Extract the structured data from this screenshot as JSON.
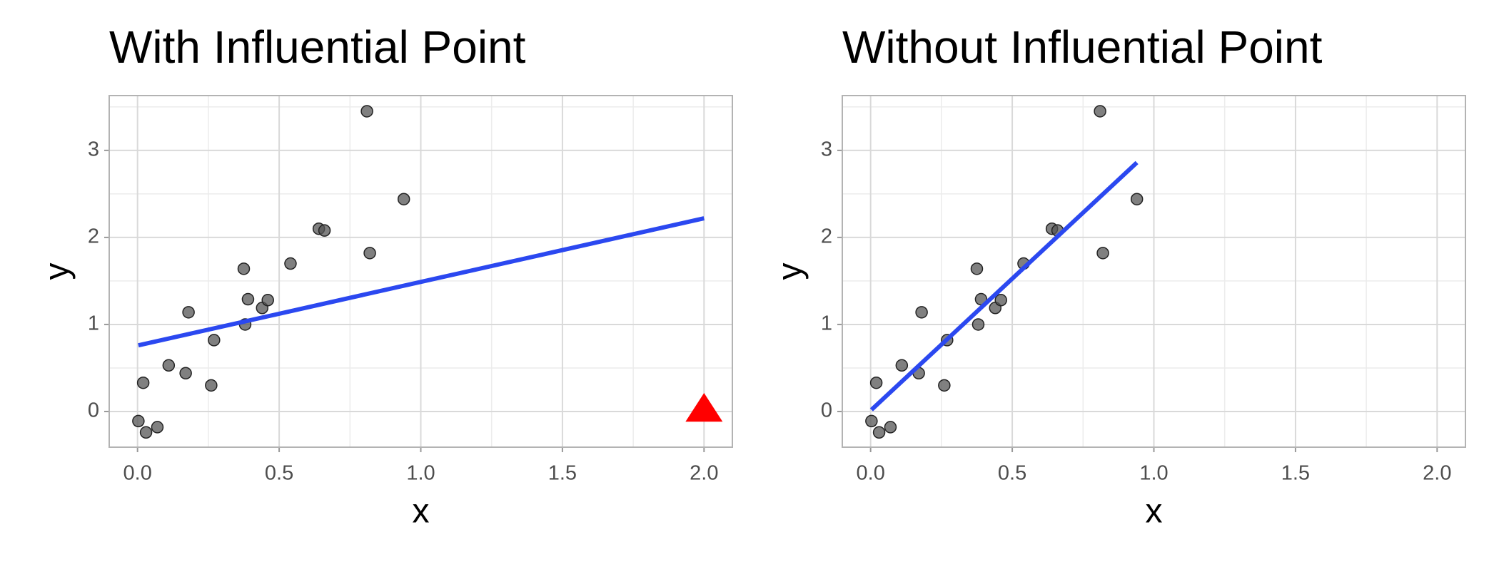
{
  "chart_data": [
    {
      "type": "scatter",
      "title": "With Influential Point",
      "x_label": "x",
      "y_label": "y",
      "xlim": [
        -0.1,
        2.1
      ],
      "ylim": [
        -0.41,
        3.63
      ],
      "xticks": [
        {
          "value": 0,
          "label": "0.0"
        },
        0.5,
        {
          "value": 1,
          "label": "1.0"
        },
        1.5,
        {
          "value": 2,
          "label": "2.0"
        }
      ],
      "yticks": [
        0,
        1,
        2,
        3
      ],
      "grid": true,
      "minor_grid": true,
      "points": {
        "color": "#555555",
        "x": [
          0.003,
          0.02,
          0.03,
          0.07,
          0.11,
          0.17,
          0.18,
          0.26,
          0.27,
          0.375,
          0.38,
          0.39,
          0.44,
          0.46,
          0.54,
          0.64,
          0.66,
          0.81,
          0.82,
          0.94
        ],
        "y": [
          -0.11,
          0.33,
          -0.24,
          -0.18,
          0.53,
          0.44,
          1.14,
          0.3,
          0.82,
          1.64,
          1.0,
          1.29,
          1.19,
          1.28,
          1.7,
          2.1,
          2.08,
          3.45,
          1.82,
          2.44
        ]
      },
      "fit_line": {
        "color": "#2b48f0",
        "x": [
          0.003,
          2.0
        ],
        "y": [
          0.76,
          2.22
        ]
      },
      "highlight": {
        "color": "#ff0000",
        "marker": "triangle",
        "x": [
          2.0
        ],
        "y": [
          0
        ]
      }
    },
    {
      "type": "scatter",
      "title": "Without Influential Point",
      "x_label": "x",
      "y_label": "y",
      "xlim": [
        -0.1,
        2.1
      ],
      "ylim": [
        -0.41,
        3.63
      ],
      "xticks": [
        {
          "value": 0,
          "label": "0.0"
        },
        0.5,
        {
          "value": 1,
          "label": "1.0"
        },
        1.5,
        {
          "value": 2,
          "label": "2.0"
        }
      ],
      "yticks": [
        0,
        1,
        2,
        3
      ],
      "grid": true,
      "minor_grid": true,
      "points": {
        "color": "#555555",
        "x": [
          0.003,
          0.02,
          0.03,
          0.07,
          0.11,
          0.17,
          0.18,
          0.26,
          0.27,
          0.375,
          0.38,
          0.39,
          0.44,
          0.46,
          0.54,
          0.64,
          0.66,
          0.81,
          0.82,
          0.94
        ],
        "y": [
          -0.11,
          0.33,
          -0.24,
          -0.18,
          0.53,
          0.44,
          1.14,
          0.3,
          0.82,
          1.64,
          1.0,
          1.29,
          1.19,
          1.28,
          1.7,
          2.1,
          2.08,
          3.45,
          1.82,
          2.44
        ]
      },
      "fit_line": {
        "color": "#2b48f0",
        "x": [
          0.003,
          0.94
        ],
        "y": [
          0.02,
          2.86
        ]
      }
    }
  ]
}
